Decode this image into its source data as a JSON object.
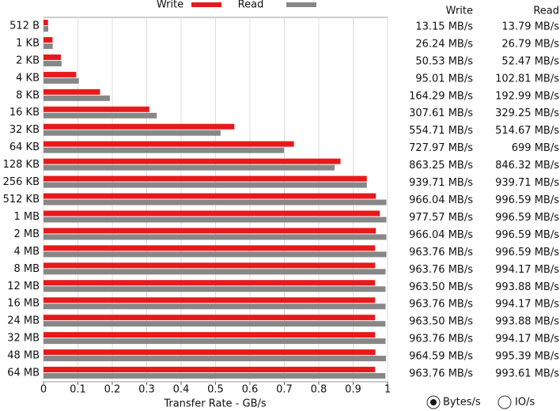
{
  "chart_data": {
    "type": "hbar",
    "xlabel": "Transfer Rate - GB/s",
    "categories": [
      "512 B",
      "1 KB",
      "2 KB",
      "4 KB",
      "8 KB",
      "16 KB",
      "32 KB",
      "64 KB",
      "128 KB",
      "256 KB",
      "512 KB",
      "1 MB",
      "2 MB",
      "4 MB",
      "8 MB",
      "12 MB",
      "16 MB",
      "24 MB",
      "32 MB",
      "48 MB",
      "64 MB"
    ],
    "series": [
      {
        "name": "Write",
        "color": "#e8191b",
        "values": [
          0.01315,
          0.02624,
          0.05053,
          0.09501,
          0.16429,
          0.30761,
          0.55471,
          0.72797,
          0.86325,
          0.93971,
          0.96604,
          0.97757,
          0.96604,
          0.96376,
          0.96376,
          0.9635,
          0.96376,
          0.9635,
          0.96376,
          0.96459,
          0.96376
        ],
        "value_labels": [
          "13.15 MB/s",
          "26.24 MB/s",
          "50.53 MB/s",
          "95.01 MB/s",
          "164.29 MB/s",
          "307.61 MB/s",
          "554.71 MB/s",
          "727.97 MB/s",
          "863.25 MB/s",
          "939.71 MB/s",
          "966.04 MB/s",
          "977.57 MB/s",
          "966.04 MB/s",
          "963.76 MB/s",
          "963.76 MB/s",
          "963.50 MB/s",
          "963.76 MB/s",
          "963.50 MB/s",
          "963.76 MB/s",
          "964.59 MB/s",
          "963.76 MB/s"
        ]
      },
      {
        "name": "Read",
        "color": "#878787",
        "values": [
          0.01379,
          0.02679,
          0.05247,
          0.10281,
          0.19299,
          0.32925,
          0.51467,
          0.699,
          0.84632,
          0.93971,
          0.99659,
          0.99659,
          0.99659,
          0.99659,
          0.99417,
          0.99388,
          0.99417,
          0.99388,
          0.99417,
          0.99539,
          0.99361
        ],
        "value_labels": [
          "13.79 MB/s",
          "26.79 MB/s",
          "52.47 MB/s",
          "102.81 MB/s",
          "192.99 MB/s",
          "329.25 MB/s",
          "514.67 MB/s",
          "699 MB/s",
          "846.32 MB/s",
          "939.71 MB/s",
          "996.59 MB/s",
          "996.59 MB/s",
          "996.59 MB/s",
          "996.59 MB/s",
          "994.17 MB/s",
          "993.88 MB/s",
          "994.17 MB/s",
          "993.88 MB/s",
          "994.17 MB/s",
          "995.39 MB/s",
          "993.61 MB/s"
        ]
      }
    ],
    "xlim": [
      0,
      1
    ],
    "xticks": [
      0,
      0.1,
      0.2,
      0.3,
      0.4,
      0.5,
      0.6,
      0.7,
      0.8,
      0.9,
      1
    ],
    "grid": true
  },
  "controls": [
    "Bytes/s",
    "IO/s"
  ]
}
